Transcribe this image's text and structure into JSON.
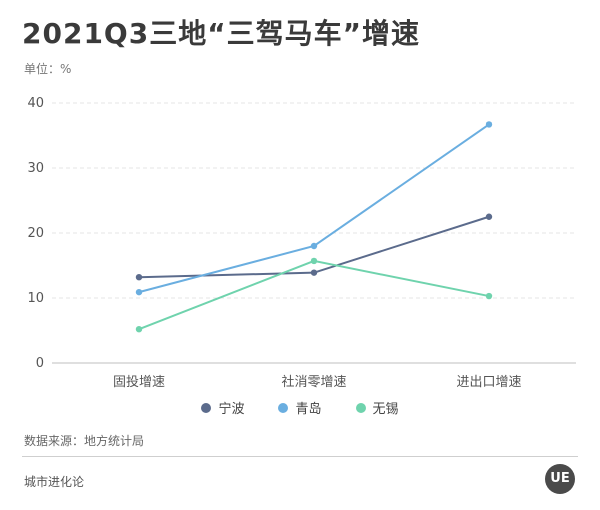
{
  "title": "2021Q3三地“三驾马车”增速",
  "unit_label": "单位：%",
  "source": "数据来源：地方统计局",
  "footer": "城市进化论",
  "logo_text": "UE",
  "chart_data": {
    "type": "line",
    "categories": [
      "固投增速",
      "社消零增速",
      "进出口增速"
    ],
    "ylim": [
      0,
      40
    ],
    "yticks": [
      0,
      10,
      20,
      30,
      40
    ],
    "grid": true,
    "legend_position": "bottom",
    "series": [
      {
        "name": "宁波",
        "color": "#5b6b8c",
        "values": [
          13.2,
          13.9,
          22.5
        ]
      },
      {
        "name": "青岛",
        "color": "#6aaee0",
        "values": [
          10.9,
          18.0,
          36.7
        ]
      },
      {
        "name": "无锡",
        "color": "#6fd3ad",
        "values": [
          5.2,
          15.7,
          10.3
        ]
      }
    ]
  }
}
